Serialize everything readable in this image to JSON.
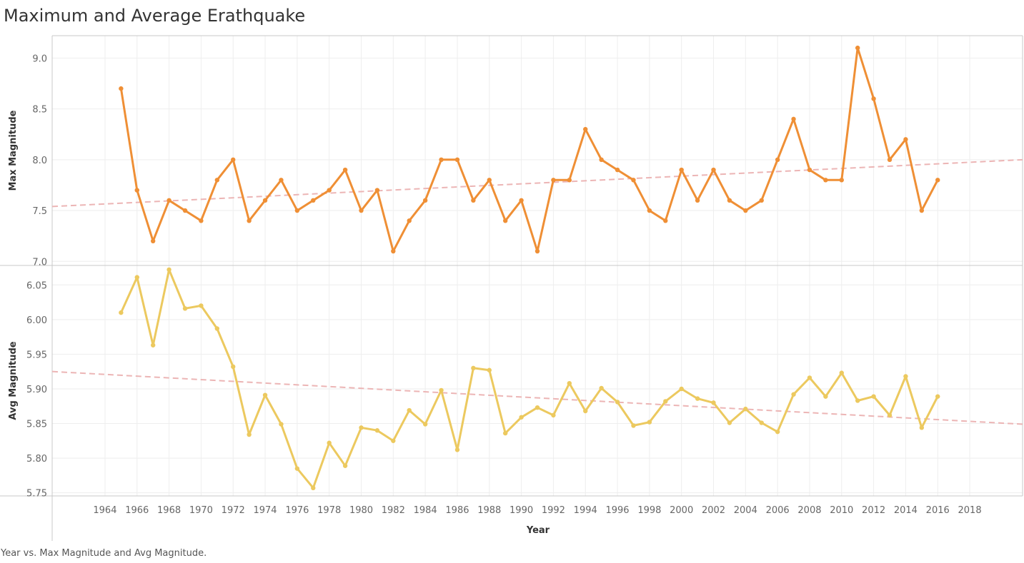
{
  "title": "Maximum and Average Erathquake",
  "caption": "Year vs. Max Magnitude and Avg Magnitude.",
  "colors": {
    "max_line": "#ef8f35",
    "avg_line": "#ecc95f",
    "trend_line": "#ecb5b5",
    "grid": "#eeeeee",
    "border": "#c8c8c8"
  },
  "chart_data": {
    "type": "line",
    "xlabel": "Year",
    "x_ticks": [
      1964,
      1966,
      1968,
      1970,
      1972,
      1974,
      1976,
      1978,
      1980,
      1982,
      1984,
      1986,
      1988,
      1990,
      1992,
      1994,
      1996,
      1998,
      2000,
      2002,
      2004,
      2006,
      2008,
      2010,
      2012,
      2014,
      2016,
      2018
    ],
    "x": [
      1965,
      1966,
      1967,
      1968,
      1969,
      1970,
      1971,
      1972,
      1973,
      1974,
      1975,
      1976,
      1977,
      1978,
      1979,
      1980,
      1981,
      1982,
      1983,
      1984,
      1985,
      1986,
      1987,
      1988,
      1989,
      1990,
      1991,
      1992,
      1993,
      1994,
      1995,
      1996,
      1997,
      1998,
      1999,
      2000,
      2001,
      2002,
      2003,
      2004,
      2005,
      2006,
      2007,
      2008,
      2009,
      2010,
      2011,
      2012,
      2013,
      2014,
      2015,
      2016
    ],
    "panes": [
      {
        "ylabel": "Max Magnitude",
        "y_ticks": [
          "7.0",
          "7.5",
          "8.0",
          "8.5",
          "9.0"
        ],
        "ylim": [
          6.96,
          9.22
        ],
        "color_key": "max_line",
        "values": [
          8.7,
          7.7,
          7.2,
          7.6,
          7.5,
          7.4,
          7.8,
          8.0,
          7.4,
          7.6,
          7.8,
          7.5,
          7.6,
          7.7,
          7.9,
          7.5,
          7.7,
          7.1,
          7.4,
          7.6,
          8.0,
          8.0,
          7.6,
          7.8,
          7.4,
          7.6,
          7.1,
          7.8,
          7.8,
          8.3,
          8.0,
          7.9,
          7.8,
          7.5,
          7.4,
          7.9,
          7.6,
          7.9,
          7.6,
          7.5,
          7.6,
          8.0,
          8.4,
          7.9,
          7.8,
          7.8,
          9.1,
          8.6,
          8.0,
          8.2,
          7.5,
          7.8
        ],
        "trend": {
          "x": [
            1960.7,
            2021.3
          ],
          "y": [
            7.54,
            8.0
          ]
        }
      },
      {
        "ylabel": "Avg Magnitude",
        "y_ticks": [
          "5.75",
          "5.80",
          "5.85",
          "5.90",
          "5.95",
          "6.00",
          "6.05"
        ],
        "ylim": [
          5.7455,
          6.0781
        ],
        "color_key": "avg_line",
        "values": [
          6.01,
          6.061,
          5.963,
          6.072,
          6.016,
          6.02,
          5.987,
          5.932,
          5.834,
          5.891,
          5.849,
          5.785,
          5.757,
          5.822,
          5.789,
          5.844,
          5.84,
          5.825,
          5.869,
          5.849,
          5.898,
          5.812,
          5.93,
          5.927,
          5.836,
          5.859,
          5.873,
          5.862,
          5.908,
          5.868,
          5.901,
          5.881,
          5.847,
          5.852,
          5.882,
          5.9,
          5.886,
          5.88,
          5.851,
          5.871,
          5.851,
          5.838,
          5.892,
          5.916,
          5.889,
          5.923,
          5.883,
          5.889,
          5.862,
          5.918,
          5.844,
          5.889
        ],
        "trend": {
          "x": [
            1960.7,
            2021.3
          ],
          "y": [
            5.925,
            5.849
          ]
        }
      }
    ]
  }
}
